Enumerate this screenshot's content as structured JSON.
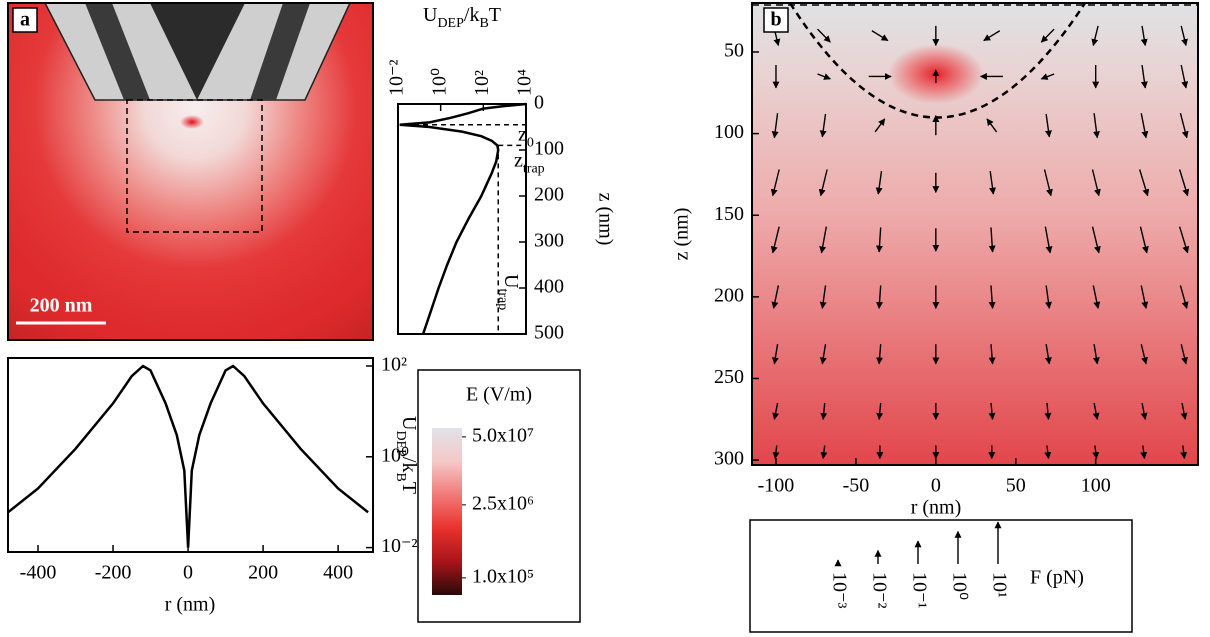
{
  "chart_data": [
    {
      "type": "image",
      "label": "a",
      "scale_bar": "200 nm"
    },
    {
      "type": "line",
      "xlabel": [
        "U",
        {
          "text": "DEP",
          "sub": true
        },
        "/k",
        {
          "text": "B",
          "sub": true
        },
        "T"
      ],
      "ylabel": "z (nm)",
      "x_scale": "log",
      "xlim": [
        0.01,
        10000
      ],
      "xticks": [
        {
          "value": 0.01,
          "label": "10⁻²"
        },
        {
          "value": 1,
          "label": "10⁰"
        },
        {
          "value": 100,
          "label": "10²"
        },
        {
          "value": 10000,
          "label": "10⁴"
        }
      ],
      "ylim": [
        0,
        500
      ],
      "yticks": [
        0,
        100,
        200,
        300,
        400,
        500
      ],
      "x_axis": "top",
      "y_axis": "right",
      "y_invert": true,
      "color": "#000000",
      "x": [
        10000,
        800,
        100,
        20,
        3,
        0.3,
        0.012,
        0.3,
        10,
        80,
        250,
        450,
        500,
        400,
        250,
        80,
        20,
        5.5,
        2,
        0.8,
        0.35,
        0.15
      ],
      "y": [
        0,
        5,
        10,
        20,
        30,
        40,
        45,
        50,
        60,
        70,
        80,
        90,
        100,
        125,
        150,
        200,
        250,
        300,
        350,
        400,
        450,
        500
      ],
      "annotations": [
        {
          "label": [
            "z",
            {
              "text": "0",
              "sub": true
            }
          ],
          "z": 45
        },
        {
          "label": [
            "z",
            {
              "text": "trap",
              "sub": true
            }
          ],
          "z": 90
        },
        {
          "label": [
            "U",
            {
              "text": "trap",
              "sub": true
            }
          ],
          "U": 500
        }
      ]
    },
    {
      "type": "line",
      "xlabel": "r (nm)",
      "ylabel": [
        "U",
        {
          "text": "DEP",
          "sub": true
        },
        "/k",
        {
          "text": "B",
          "sub": true
        },
        "T"
      ],
      "xlim": [
        -480,
        493
      ],
      "xticks": [
        -400,
        -200,
        0,
        200,
        400
      ],
      "y_scale": "log",
      "ylim": [
        0.008,
        150
      ],
      "yticks": [
        {
          "value": 0.01,
          "label": "10⁻²"
        },
        {
          "value": 1,
          "label": "10⁰"
        },
        {
          "value": 100,
          "label": "10²"
        }
      ],
      "x_axis": "bottom",
      "y_axis": "right",
      "color": "#000000",
      "x": [
        -480,
        -400,
        -300,
        -200,
        -150,
        -120,
        -100,
        -60,
        -30,
        -10,
        0,
        10,
        30,
        60,
        100,
        120,
        150,
        200,
        300,
        400,
        480
      ],
      "y": [
        0.06,
        0.2,
        1.5,
        15,
        60,
        100,
        80,
        15,
        3,
        0.5,
        0.01,
        0.5,
        3,
        15,
        80,
        100,
        60,
        15,
        1.5,
        0.2,
        0.06
      ]
    },
    {
      "type": "colorbar",
      "title": "E (V/m)",
      "scale": "log",
      "clim": [
        47000,
        74000000
      ],
      "ticks": [
        {
          "value": 50000000,
          "label": "5.0x10⁷"
        },
        {
          "value": 2500000,
          "label": "2.5x10⁶"
        },
        {
          "value": 100000,
          "label": "1.0x10⁵"
        }
      ],
      "colors": [
        "#2a0a0a",
        "#a8141a",
        "#e8322e",
        "#f07a78",
        "#f5c8c8",
        "#dfe3e6"
      ]
    },
    {
      "type": "quiver",
      "label": "b",
      "xlabel": "r (nm)",
      "ylabel": "z (nm)",
      "xlim": [
        -115,
        164
      ],
      "xticks": [
        -100,
        -50,
        0,
        50,
        100
      ],
      "ylim": [
        20,
        303
      ],
      "yticks": [
        50,
        100,
        150,
        200,
        250,
        300
      ],
      "x_axis": "bottom",
      "y_axis": "left",
      "y_invert": true,
      "color": "#000000",
      "arrows": [
        [
          -100,
          40,
          3,
          12
        ],
        [
          -70,
          40,
          8,
          8
        ],
        [
          -35,
          40,
          10,
          6
        ],
        [
          0,
          40,
          0,
          12
        ],
        [
          35,
          40,
          -10,
          6
        ],
        [
          70,
          40,
          -8,
          8
        ],
        [
          100,
          40,
          -3,
          12
        ],
        [
          130,
          40,
          2,
          12
        ],
        [
          155,
          40,
          3,
          12
        ],
        [
          -100,
          65,
          0,
          14
        ],
        [
          -70,
          65,
          8,
          3
        ],
        [
          -35,
          65,
          14,
          0
        ],
        [
          0,
          65,
          0,
          -8
        ],
        [
          35,
          65,
          -14,
          0
        ],
        [
          70,
          65,
          -8,
          3
        ],
        [
          100,
          65,
          0,
          14
        ],
        [
          130,
          65,
          2,
          14
        ],
        [
          155,
          65,
          3,
          14
        ],
        [
          -100,
          95,
          -2,
          15
        ],
        [
          -70,
          95,
          -2,
          14
        ],
        [
          -35,
          95,
          6,
          -8
        ],
        [
          0,
          95,
          0,
          -12
        ],
        [
          35,
          95,
          -6,
          -8
        ],
        [
          70,
          95,
          2,
          14
        ],
        [
          100,
          95,
          2,
          15
        ],
        [
          130,
          95,
          3,
          15
        ],
        [
          155,
          95,
          4,
          15
        ],
        [
          -100,
          130,
          -4,
          16
        ],
        [
          -70,
          130,
          -4,
          16
        ],
        [
          -35,
          130,
          -2,
          14
        ],
        [
          0,
          130,
          0,
          12
        ],
        [
          35,
          130,
          2,
          14
        ],
        [
          70,
          130,
          4,
          16
        ],
        [
          100,
          130,
          4,
          16
        ],
        [
          130,
          130,
          5,
          16
        ],
        [
          155,
          130,
          5,
          16
        ],
        [
          -100,
          165,
          -4,
          16
        ],
        [
          -70,
          165,
          -3,
          16
        ],
        [
          -35,
          165,
          -1,
          15
        ],
        [
          0,
          165,
          0,
          14
        ],
        [
          35,
          165,
          1,
          15
        ],
        [
          70,
          165,
          3,
          16
        ],
        [
          100,
          165,
          4,
          16
        ],
        [
          130,
          165,
          4,
          16
        ],
        [
          155,
          165,
          5,
          16
        ],
        [
          -100,
          200,
          -3,
          14
        ],
        [
          -70,
          200,
          -2,
          14
        ],
        [
          -35,
          200,
          -1,
          14
        ],
        [
          0,
          200,
          0,
          14
        ],
        [
          35,
          200,
          1,
          14
        ],
        [
          70,
          200,
          2,
          14
        ],
        [
          100,
          200,
          3,
          14
        ],
        [
          130,
          200,
          3,
          14
        ],
        [
          155,
          200,
          4,
          14
        ],
        [
          -100,
          235,
          -2,
          12
        ],
        [
          -70,
          235,
          -2,
          12
        ],
        [
          -35,
          235,
          -1,
          12
        ],
        [
          0,
          235,
          0,
          12
        ],
        [
          35,
          235,
          1,
          12
        ],
        [
          70,
          235,
          2,
          12
        ],
        [
          100,
          235,
          2,
          12
        ],
        [
          130,
          235,
          3,
          12
        ],
        [
          155,
          235,
          3,
          12
        ],
        [
          -100,
          270,
          -2,
          10
        ],
        [
          -70,
          270,
          -1,
          10
        ],
        [
          -35,
          270,
          -1,
          10
        ],
        [
          0,
          270,
          0,
          10
        ],
        [
          35,
          270,
          1,
          10
        ],
        [
          70,
          270,
          1,
          10
        ],
        [
          100,
          270,
          2,
          10
        ],
        [
          130,
          270,
          2,
          10
        ],
        [
          155,
          270,
          2,
          10
        ],
        [
          -100,
          295,
          -1,
          8
        ],
        [
          -70,
          295,
          -1,
          8
        ],
        [
          -35,
          295,
          0,
          8
        ],
        [
          0,
          295,
          0,
          8
        ],
        [
          35,
          295,
          0,
          8
        ],
        [
          70,
          295,
          1,
          8
        ],
        [
          100,
          295,
          1,
          8
        ],
        [
          130,
          295,
          1,
          8
        ],
        [
          155,
          295,
          1,
          8
        ]
      ],
      "legend": {
        "title": "F (pN)",
        "ticks": [
          {
            "value": 0.001,
            "label": "10⁻³"
          },
          {
            "value": 0.01,
            "label": "10⁻²"
          },
          {
            "value": 0.1,
            "label": "10⁻¹"
          },
          {
            "value": 1,
            "label": "10⁰"
          },
          {
            "value": 10,
            "label": "10¹"
          }
        ]
      }
    }
  ]
}
